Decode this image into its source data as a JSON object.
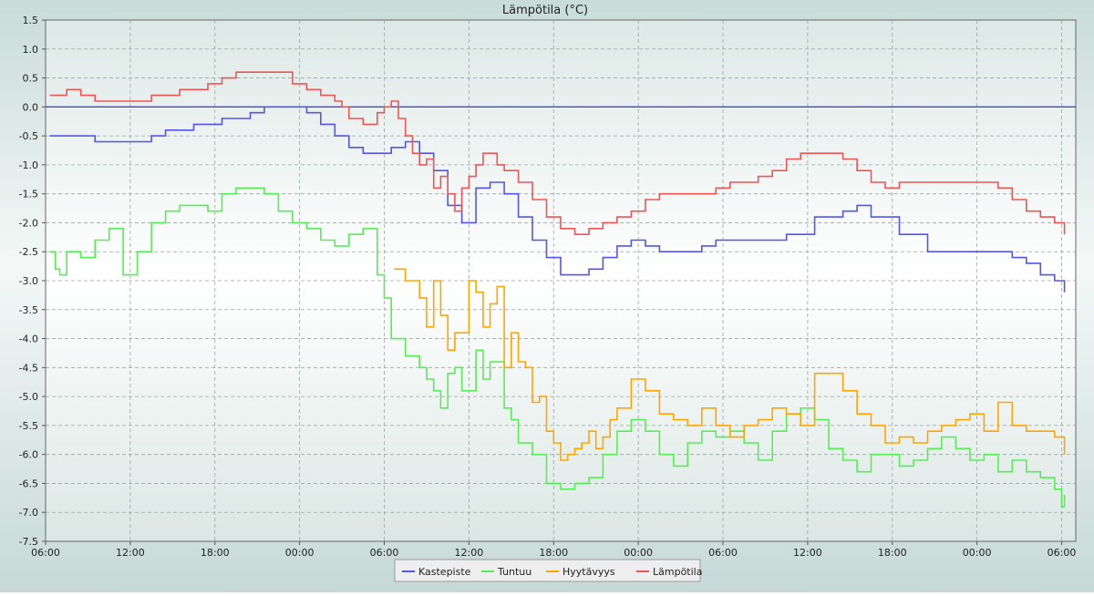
{
  "chart_data": {
    "type": "line",
    "title": "Lämpötila (°C)",
    "xlabel": "",
    "ylabel": "",
    "x_ticks": [
      "06:00",
      "12:00",
      "18:00",
      "00:00",
      "06:00",
      "12:00",
      "18:00",
      "00:00",
      "06:00",
      "12:00",
      "18:00",
      "00:00",
      "06:00"
    ],
    "x_tick_hours": [
      0,
      6,
      12,
      18,
      24,
      30,
      36,
      42,
      48,
      54,
      60,
      66,
      72
    ],
    "xlim_hours": [
      0,
      73
    ],
    "ylim": [
      -7.5,
      1.5
    ],
    "y_ticks": [
      "-7.5",
      "-7.0",
      "-6.5",
      "-6.0",
      "-5.5",
      "-5.0",
      "-4.5",
      "-4.0",
      "-3.5",
      "-3.0",
      "-2.5",
      "-2.0",
      "-1.5",
      "-1.0",
      "-0.5",
      "0.0",
      "0.5",
      "1.0",
      "1.5"
    ],
    "reference_line": 0,
    "grid": true,
    "legend_position": "bottom-center",
    "series": [
      {
        "name": "Kastepiste",
        "color": "#5555ee",
        "x": [
          0.3,
          1.5,
          2.5,
          3.5,
          5.5,
          7.5,
          8.5,
          10.5,
          12.5,
          14.5,
          15.5,
          16.5,
          17.5,
          18.5,
          19.5,
          20.5,
          21.5,
          22.5,
          24.5,
          25.5,
          26.5,
          27.5,
          28.5,
          29.0,
          29.5,
          30.5,
          31.5,
          32.5,
          33.5,
          34.5,
          35.5,
          36.5,
          37.5,
          38.5,
          39.5,
          40.5,
          41.5,
          42.5,
          43.5,
          44.5,
          45.5,
          46.5,
          47.5,
          48.5,
          50.5,
          52.5,
          54.5,
          56.5,
          57.5,
          58.5,
          60.5,
          62.5,
          64.5,
          65.5,
          66.5,
          67.5,
          68.5,
          69.5,
          70.5,
          71.5,
          72.2
        ],
        "y": [
          -0.5,
          -0.5,
          -0.5,
          -0.6,
          -0.6,
          -0.5,
          -0.4,
          -0.3,
          -0.2,
          -0.1,
          0.0,
          0.0,
          0.0,
          -0.1,
          -0.3,
          -0.5,
          -0.7,
          -0.8,
          -0.7,
          -0.6,
          -0.8,
          -1.1,
          -1.7,
          -1.7,
          -2.0,
          -1.4,
          -1.3,
          -1.5,
          -1.9,
          -2.3,
          -2.6,
          -2.9,
          -2.9,
          -2.8,
          -2.6,
          -2.4,
          -2.3,
          -2.4,
          -2.5,
          -2.5,
          -2.5,
          -2.4,
          -2.3,
          -2.3,
          -2.3,
          -2.2,
          -1.9,
          -1.8,
          -1.7,
          -1.9,
          -2.2,
          -2.5,
          -2.5,
          -2.5,
          -2.5,
          -2.5,
          -2.6,
          -2.7,
          -2.9,
          -3.0,
          -3.2
        ]
      },
      {
        "name": "Tuntuu",
        "color": "#55ee55",
        "x": [
          0.3,
          0.7,
          1.0,
          1.5,
          2.5,
          3.5,
          4.5,
          5.5,
          6.5,
          7.5,
          8.5,
          9.5,
          10.5,
          11.5,
          12.5,
          13.5,
          14.5,
          15.5,
          16.5,
          17.5,
          18.5,
          19.5,
          20.5,
          21.5,
          22.5,
          23.5,
          24.0,
          24.5,
          25.5,
          26.5,
          27.0,
          27.5,
          28.0,
          28.5,
          29.0,
          29.5,
          30.5,
          31.0,
          31.5,
          32.5,
          33.0,
          33.5,
          34.5,
          35.5,
          36.5,
          37.5,
          38.5,
          39.5,
          40.5,
          41.5,
          42.5,
          43.5,
          44.5,
          45.5,
          46.5,
          47.5,
          48.5,
          49.5,
          50.5,
          51.5,
          52.5,
          53.5,
          54.5,
          55.5,
          56.5,
          57.5,
          58.5,
          59.5,
          60.5,
          61.5,
          62.5,
          63.5,
          64.5,
          65.5,
          66.5,
          67.5,
          68.5,
          69.5,
          70.5,
          71.5,
          72.0,
          72.2
        ],
        "y": [
          -2.5,
          -2.8,
          -2.9,
          -2.5,
          -2.6,
          -2.3,
          -2.1,
          -2.9,
          -2.5,
          -2.0,
          -1.8,
          -1.7,
          -1.7,
          -1.8,
          -1.5,
          -1.4,
          -1.4,
          -1.5,
          -1.8,
          -2.0,
          -2.1,
          -2.3,
          -2.4,
          -2.2,
          -2.1,
          -2.9,
          -3.3,
          -4.0,
          -4.3,
          -4.5,
          -4.7,
          -4.9,
          -5.2,
          -4.6,
          -4.5,
          -4.9,
          -4.2,
          -4.7,
          -4.4,
          -5.2,
          -5.4,
          -5.8,
          -6.0,
          -6.5,
          -6.6,
          -6.5,
          -6.4,
          -6.0,
          -5.6,
          -5.4,
          -5.6,
          -6.0,
          -6.2,
          -5.8,
          -5.6,
          -5.7,
          -5.6,
          -5.8,
          -6.1,
          -5.6,
          -5.3,
          -5.2,
          -5.4,
          -5.9,
          -6.1,
          -6.3,
          -6.0,
          -6.0,
          -6.2,
          -6.1,
          -5.9,
          -5.7,
          -5.9,
          -6.1,
          -6.0,
          -6.3,
          -6.1,
          -6.3,
          -6.4,
          -6.6,
          -6.9,
          -6.7
        ]
      },
      {
        "name": "Hyytävyys",
        "color": "#ffa500",
        "x": [
          24.7,
          25.5,
          26.5,
          27.0,
          27.5,
          28.0,
          28.5,
          29.0,
          29.5,
          30.0,
          30.5,
          31.0,
          31.5,
          32.0,
          32.5,
          33.0,
          33.5,
          34.0,
          34.5,
          35.0,
          35.5,
          36.0,
          36.5,
          37.0,
          37.5,
          38.0,
          38.5,
          39.0,
          39.5,
          40.0,
          40.5,
          41.5,
          42.5,
          43.5,
          44.5,
          45.5,
          46.5,
          47.5,
          48.5,
          49.5,
          50.5,
          51.5,
          52.5,
          53.5,
          54.5,
          55.5,
          56.5,
          57.5,
          58.5,
          59.5,
          60.5,
          61.5,
          62.5,
          63.5,
          64.5,
          65.5,
          66.5,
          67.5,
          68.5,
          69.5,
          70.5,
          71.5,
          72.2
        ],
        "y": [
          -2.8,
          -3.0,
          -3.3,
          -3.8,
          -3.0,
          -3.6,
          -4.2,
          -3.9,
          -3.9,
          -3.0,
          -3.2,
          -3.8,
          -3.4,
          -3.1,
          -4.5,
          -3.9,
          -4.4,
          -4.5,
          -5.1,
          -5.0,
          -5.6,
          -5.8,
          -6.1,
          -6.0,
          -5.9,
          -5.8,
          -5.6,
          -5.9,
          -5.7,
          -5.4,
          -5.2,
          -4.7,
          -4.9,
          -5.3,
          -5.4,
          -5.5,
          -5.2,
          -5.5,
          -5.7,
          -5.5,
          -5.4,
          -5.2,
          -5.3,
          -5.5,
          -4.6,
          -4.6,
          -4.9,
          -5.3,
          -5.5,
          -5.8,
          -5.7,
          -5.8,
          -5.6,
          -5.5,
          -5.4,
          -5.3,
          -5.6,
          -5.1,
          -5.5,
          -5.6,
          -5.6,
          -5.7,
          -6.0
        ]
      },
      {
        "name": "Lämpötila",
        "color": "#ee5555",
        "x": [
          0.3,
          1.5,
          2.5,
          3.5,
          4.5,
          5.5,
          6.5,
          7.5,
          8.5,
          9.5,
          10.5,
          11.5,
          12.5,
          13.5,
          14.5,
          15.5,
          16.5,
          17.5,
          18.5,
          19.5,
          20.5,
          21.0,
          21.5,
          22.5,
          23.5,
          24.0,
          24.5,
          25.0,
          25.5,
          26.0,
          26.5,
          27.0,
          27.5,
          28.0,
          28.5,
          29.0,
          29.5,
          30.0,
          30.5,
          31.0,
          31.5,
          32.0,
          32.5,
          33.5,
          34.5,
          35.5,
          36.5,
          37.5,
          38.5,
          39.5,
          40.5,
          41.5,
          42.5,
          43.5,
          44.5,
          45.5,
          46.5,
          47.5,
          48.5,
          49.5,
          50.5,
          51.5,
          52.5,
          53.5,
          54.5,
          55.5,
          56.5,
          57.5,
          58.5,
          59.5,
          60.5,
          61.5,
          62.5,
          63.5,
          64.5,
          65.5,
          66.5,
          67.5,
          68.5,
          69.5,
          70.5,
          71.5,
          72.2
        ],
        "y": [
          0.2,
          0.3,
          0.2,
          0.1,
          0.1,
          0.1,
          0.1,
          0.2,
          0.2,
          0.3,
          0.3,
          0.4,
          0.5,
          0.6,
          0.6,
          0.6,
          0.6,
          0.4,
          0.3,
          0.2,
          0.1,
          0.0,
          -0.2,
          -0.3,
          -0.1,
          0.0,
          0.1,
          -0.2,
          -0.5,
          -0.8,
          -1.0,
          -0.9,
          -1.4,
          -1.2,
          -1.5,
          -1.8,
          -1.4,
          -1.2,
          -1.0,
          -0.8,
          -0.8,
          -1.0,
          -1.1,
          -1.3,
          -1.6,
          -1.9,
          -2.1,
          -2.2,
          -2.1,
          -2.0,
          -1.9,
          -1.8,
          -1.6,
          -1.5,
          -1.5,
          -1.5,
          -1.5,
          -1.4,
          -1.3,
          -1.3,
          -1.2,
          -1.1,
          -0.9,
          -0.8,
          -0.8,
          -0.8,
          -0.9,
          -1.1,
          -1.3,
          -1.4,
          -1.3,
          -1.3,
          -1.3,
          -1.3,
          -1.3,
          -1.3,
          -1.3,
          -1.4,
          -1.6,
          -1.8,
          -1.9,
          -2.0,
          -2.2
        ]
      }
    ]
  }
}
